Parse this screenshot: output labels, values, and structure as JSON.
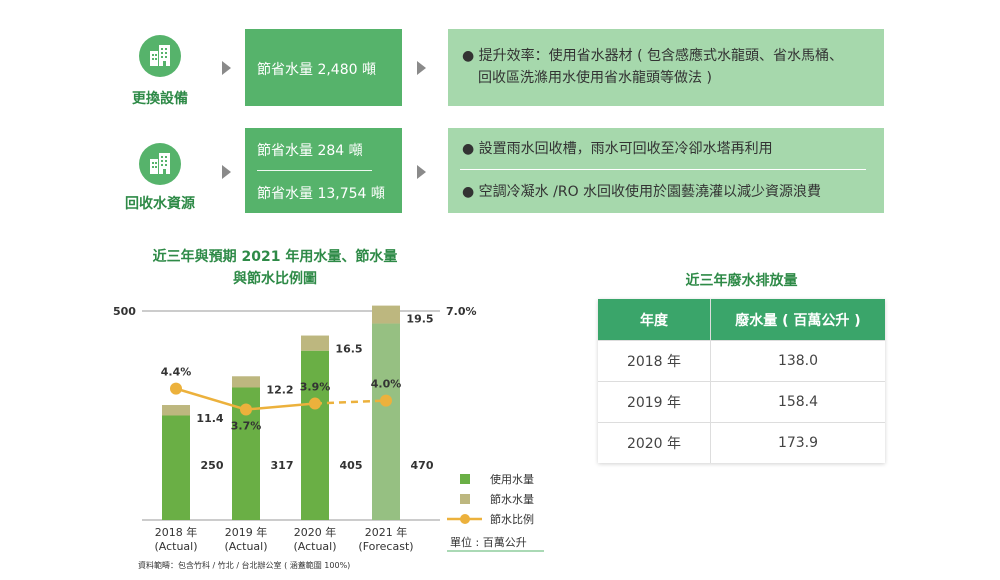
{
  "rows": [
    {
      "category": "更換設備",
      "icon": "building-icon",
      "savings": [
        "節省水量 2,480 噸"
      ],
      "notes": [
        "提升效率：使用省水器材 ( 包含感應式水龍頭、省水馬桶、",
        "回收區洗滌用水使用省水龍頭等做法 )"
      ]
    },
    {
      "category": "回收水資源",
      "icon": "building-icon",
      "savings": [
        "節省水量 284 噸",
        "節省水量 13,754 噸"
      ],
      "notes": [
        "設置雨水回收槽，雨水可回收至冷卻水塔再利用",
        "空調冷凝水 /RO 水回收使用於園藝澆灌以減少資源浪費"
      ]
    }
  ],
  "chart_data": {
    "type": "bar",
    "title_lines": [
      "近三年與預期 2021 年用水量、節水量",
      "與節水比例圖"
    ],
    "categories": [
      "2018 年\n(Actual)",
      "2019 年\n(Actual)",
      "2020 年\n(Actual)",
      "2021 年\n(Forecast)"
    ],
    "series": [
      {
        "name": "使用水量",
        "values": [
          250,
          317,
          405,
          470
        ],
        "color": "#6aaf45"
      },
      {
        "name": "節水水量",
        "values": [
          11.4,
          12.2,
          16.5,
          19.5
        ],
        "color": "#bdb77f"
      },
      {
        "name": "節水比例",
        "values": [
          4.4,
          3.7,
          3.9,
          4.0
        ],
        "color": "#ecb13c",
        "axis": "right",
        "unit": "%"
      }
    ],
    "forecast_index": 3,
    "forecast_color": "#96c082",
    "left_axis": {
      "max_label": "500"
    },
    "right_axis": {
      "max_label": "7.0%"
    },
    "unit_note": "單位 : 百萬公升",
    "source_note": "資料範疇：包含竹科 / 竹北 / 台北辦公室 ( 涵蓋範圍 100%)"
  },
  "table": {
    "title": "近三年廢水排放量",
    "headers": [
      "年度",
      "廢水量 ( 百萬公升 )"
    ],
    "rows": [
      [
        "2018 年",
        "138.0"
      ],
      [
        "2019 年",
        "158.4"
      ],
      [
        "2020 年",
        "173.9"
      ]
    ]
  }
}
